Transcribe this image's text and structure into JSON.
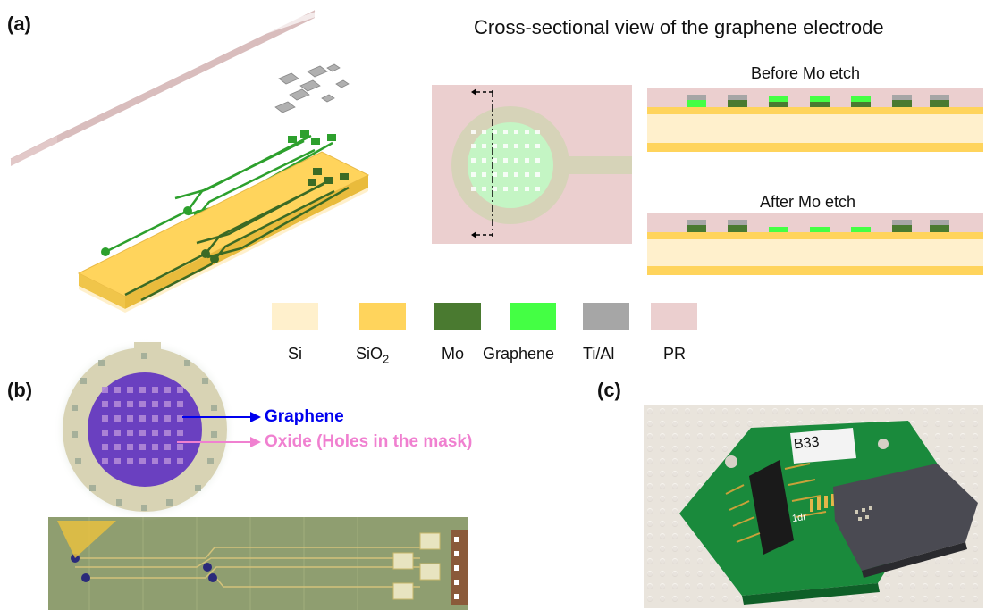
{
  "panels": {
    "a": "(a)",
    "b": "(b)",
    "c": "(c)"
  },
  "cross_section": {
    "title": "Cross-sectional view of the graphene electrode",
    "before_label": "Before Mo etch",
    "after_label": "After Mo etch"
  },
  "legend": [
    {
      "label": "Si",
      "color": "#fff0cc"
    },
    {
      "label": "SiO",
      "sub": "2",
      "color": "#ffd45c"
    },
    {
      "label": "Mo",
      "color": "#4a7a30"
    },
    {
      "label": "Graphene",
      "color": "#44ff44"
    },
    {
      "label": "Ti/Al",
      "color": "#a6a6a6"
    },
    {
      "label": "PR",
      "color": "#ebcfcf"
    }
  ],
  "annotations": {
    "graphene": "Graphene",
    "oxide": "Oxide (Holes in the mask)",
    "graphene_color": "#0000ee",
    "oxide_color": "#f080d0"
  },
  "photo": {
    "board_label": "B33",
    "silk_text": "1dr"
  }
}
